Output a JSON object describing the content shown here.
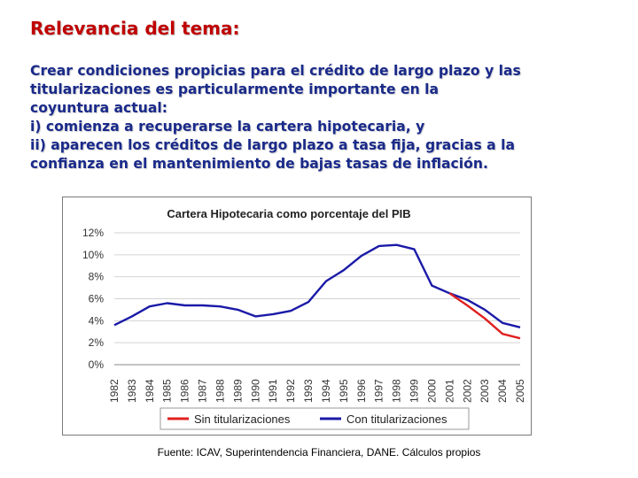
{
  "slide": {
    "title": "Relevancia del tema:",
    "paragraph_lines": [
      "Crear condiciones propicias para el crédito de largo plazo y las",
      "titularizaciones es particularmente importante en la",
      "coyuntura actual:",
      "i)  comienza a recuperarse la cartera hipotecaria, y",
      "ii) aparecen los créditos de largo plazo a tasa fija, gracias a la",
      "confianza en el mantenimiento de bajas tasas de inflación."
    ],
    "source": "Fuente: ICAV, Superintendencia Financiera, DANE. Cálculos propios"
  },
  "chart_data": {
    "type": "line",
    "title": "Cartera Hipotecaria como porcentaje del PIB",
    "xlabel": "",
    "ylabel": "",
    "x": [
      "1982",
      "1983",
      "1984",
      "1985",
      "1986",
      "1987",
      "1988",
      "1989",
      "1990",
      "1991",
      "1992",
      "1993",
      "1994",
      "1995",
      "1996",
      "1997",
      "1998",
      "1999",
      "2000",
      "2001",
      "2002",
      "2003",
      "2004",
      "2005"
    ],
    "ylim": [
      0,
      12
    ],
    "yticks": [
      "0%",
      "2%",
      "4%",
      "6%",
      "8%",
      "10%",
      "12%"
    ],
    "grid": true,
    "legend_position": "bottom",
    "series": [
      {
        "name": "Sin titularizaciones",
        "color": "#e02020",
        "values": [
          null,
          null,
          null,
          null,
          null,
          null,
          null,
          null,
          null,
          null,
          null,
          null,
          null,
          null,
          null,
          null,
          null,
          null,
          null,
          6.5,
          5.4,
          4.2,
          2.8,
          2.4
        ]
      },
      {
        "name": "Con titularizaciones",
        "color": "#1a1aa8",
        "values": [
          3.6,
          4.4,
          5.3,
          5.6,
          5.4,
          5.4,
          5.3,
          5.0,
          4.4,
          4.6,
          4.9,
          5.7,
          7.6,
          8.6,
          9.9,
          10.8,
          10.9,
          10.5,
          7.2,
          6.5,
          5.9,
          5.0,
          3.8,
          3.4
        ]
      }
    ]
  }
}
